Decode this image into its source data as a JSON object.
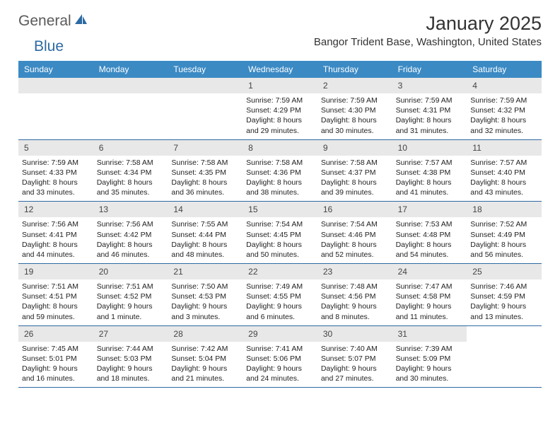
{
  "logo": {
    "text1": "General",
    "text2": "Blue"
  },
  "header": {
    "month_title": "January 2025",
    "location": "Bangor Trident Base, Washington, United States"
  },
  "colors": {
    "header_bg": "#3b8ac4",
    "header_text": "#ffffff",
    "daynum_bg": "#e8e8e8",
    "border": "#2d6aa3",
    "logo_gray": "#5a5a5a",
    "logo_blue": "#2d6aa3"
  },
  "day_names": [
    "Sunday",
    "Monday",
    "Tuesday",
    "Wednesday",
    "Thursday",
    "Friday",
    "Saturday"
  ],
  "weeks": [
    [
      null,
      null,
      null,
      {
        "n": "1",
        "sr": "Sunrise: 7:59 AM",
        "ss": "Sunset: 4:29 PM",
        "d1": "Daylight: 8 hours",
        "d2": "and 29 minutes."
      },
      {
        "n": "2",
        "sr": "Sunrise: 7:59 AM",
        "ss": "Sunset: 4:30 PM",
        "d1": "Daylight: 8 hours",
        "d2": "and 30 minutes."
      },
      {
        "n": "3",
        "sr": "Sunrise: 7:59 AM",
        "ss": "Sunset: 4:31 PM",
        "d1": "Daylight: 8 hours",
        "d2": "and 31 minutes."
      },
      {
        "n": "4",
        "sr": "Sunrise: 7:59 AM",
        "ss": "Sunset: 4:32 PM",
        "d1": "Daylight: 8 hours",
        "d2": "and 32 minutes."
      }
    ],
    [
      {
        "n": "5",
        "sr": "Sunrise: 7:59 AM",
        "ss": "Sunset: 4:33 PM",
        "d1": "Daylight: 8 hours",
        "d2": "and 33 minutes."
      },
      {
        "n": "6",
        "sr": "Sunrise: 7:58 AM",
        "ss": "Sunset: 4:34 PM",
        "d1": "Daylight: 8 hours",
        "d2": "and 35 minutes."
      },
      {
        "n": "7",
        "sr": "Sunrise: 7:58 AM",
        "ss": "Sunset: 4:35 PM",
        "d1": "Daylight: 8 hours",
        "d2": "and 36 minutes."
      },
      {
        "n": "8",
        "sr": "Sunrise: 7:58 AM",
        "ss": "Sunset: 4:36 PM",
        "d1": "Daylight: 8 hours",
        "d2": "and 38 minutes."
      },
      {
        "n": "9",
        "sr": "Sunrise: 7:58 AM",
        "ss": "Sunset: 4:37 PM",
        "d1": "Daylight: 8 hours",
        "d2": "and 39 minutes."
      },
      {
        "n": "10",
        "sr": "Sunrise: 7:57 AM",
        "ss": "Sunset: 4:38 PM",
        "d1": "Daylight: 8 hours",
        "d2": "and 41 minutes."
      },
      {
        "n": "11",
        "sr": "Sunrise: 7:57 AM",
        "ss": "Sunset: 4:40 PM",
        "d1": "Daylight: 8 hours",
        "d2": "and 43 minutes."
      }
    ],
    [
      {
        "n": "12",
        "sr": "Sunrise: 7:56 AM",
        "ss": "Sunset: 4:41 PM",
        "d1": "Daylight: 8 hours",
        "d2": "and 44 minutes."
      },
      {
        "n": "13",
        "sr": "Sunrise: 7:56 AM",
        "ss": "Sunset: 4:42 PM",
        "d1": "Daylight: 8 hours",
        "d2": "and 46 minutes."
      },
      {
        "n": "14",
        "sr": "Sunrise: 7:55 AM",
        "ss": "Sunset: 4:44 PM",
        "d1": "Daylight: 8 hours",
        "d2": "and 48 minutes."
      },
      {
        "n": "15",
        "sr": "Sunrise: 7:54 AM",
        "ss": "Sunset: 4:45 PM",
        "d1": "Daylight: 8 hours",
        "d2": "and 50 minutes."
      },
      {
        "n": "16",
        "sr": "Sunrise: 7:54 AM",
        "ss": "Sunset: 4:46 PM",
        "d1": "Daylight: 8 hours",
        "d2": "and 52 minutes."
      },
      {
        "n": "17",
        "sr": "Sunrise: 7:53 AM",
        "ss": "Sunset: 4:48 PM",
        "d1": "Daylight: 8 hours",
        "d2": "and 54 minutes."
      },
      {
        "n": "18",
        "sr": "Sunrise: 7:52 AM",
        "ss": "Sunset: 4:49 PM",
        "d1": "Daylight: 8 hours",
        "d2": "and 56 minutes."
      }
    ],
    [
      {
        "n": "19",
        "sr": "Sunrise: 7:51 AM",
        "ss": "Sunset: 4:51 PM",
        "d1": "Daylight: 8 hours",
        "d2": "and 59 minutes."
      },
      {
        "n": "20",
        "sr": "Sunrise: 7:51 AM",
        "ss": "Sunset: 4:52 PM",
        "d1": "Daylight: 9 hours",
        "d2": "and 1 minute."
      },
      {
        "n": "21",
        "sr": "Sunrise: 7:50 AM",
        "ss": "Sunset: 4:53 PM",
        "d1": "Daylight: 9 hours",
        "d2": "and 3 minutes."
      },
      {
        "n": "22",
        "sr": "Sunrise: 7:49 AM",
        "ss": "Sunset: 4:55 PM",
        "d1": "Daylight: 9 hours",
        "d2": "and 6 minutes."
      },
      {
        "n": "23",
        "sr": "Sunrise: 7:48 AM",
        "ss": "Sunset: 4:56 PM",
        "d1": "Daylight: 9 hours",
        "d2": "and 8 minutes."
      },
      {
        "n": "24",
        "sr": "Sunrise: 7:47 AM",
        "ss": "Sunset: 4:58 PM",
        "d1": "Daylight: 9 hours",
        "d2": "and 11 minutes."
      },
      {
        "n": "25",
        "sr": "Sunrise: 7:46 AM",
        "ss": "Sunset: 4:59 PM",
        "d1": "Daylight: 9 hours",
        "d2": "and 13 minutes."
      }
    ],
    [
      {
        "n": "26",
        "sr": "Sunrise: 7:45 AM",
        "ss": "Sunset: 5:01 PM",
        "d1": "Daylight: 9 hours",
        "d2": "and 16 minutes."
      },
      {
        "n": "27",
        "sr": "Sunrise: 7:44 AM",
        "ss": "Sunset: 5:03 PM",
        "d1": "Daylight: 9 hours",
        "d2": "and 18 minutes."
      },
      {
        "n": "28",
        "sr": "Sunrise: 7:42 AM",
        "ss": "Sunset: 5:04 PM",
        "d1": "Daylight: 9 hours",
        "d2": "and 21 minutes."
      },
      {
        "n": "29",
        "sr": "Sunrise: 7:41 AM",
        "ss": "Sunset: 5:06 PM",
        "d1": "Daylight: 9 hours",
        "d2": "and 24 minutes."
      },
      {
        "n": "30",
        "sr": "Sunrise: 7:40 AM",
        "ss": "Sunset: 5:07 PM",
        "d1": "Daylight: 9 hours",
        "d2": "and 27 minutes."
      },
      {
        "n": "31",
        "sr": "Sunrise: 7:39 AM",
        "ss": "Sunset: 5:09 PM",
        "d1": "Daylight: 9 hours",
        "d2": "and 30 minutes."
      },
      null
    ]
  ]
}
